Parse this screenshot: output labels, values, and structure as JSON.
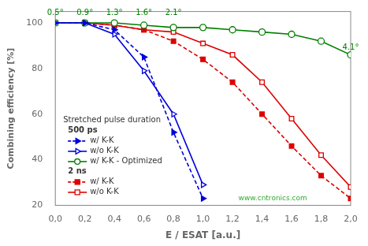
{
  "chart_data": {
    "type": "line",
    "xlabel": "E / ESAT [a.u.]",
    "ylabel": "Combining efficiency [%]",
    "xlim": [
      0,
      2.0
    ],
    "ylim": [
      20,
      105
    ],
    "xticks": [
      {
        "value": 0.0,
        "label": "0,0"
      },
      {
        "value": 0.2,
        "label": "0,2"
      },
      {
        "value": 0.4,
        "label": "0,4"
      },
      {
        "value": 0.6,
        "label": "0,6"
      },
      {
        "value": 0.8,
        "label": "0,8"
      },
      {
        "value": 1.0,
        "label": "1,0"
      },
      {
        "value": 1.2,
        "label": "1,2"
      },
      {
        "value": 1.4,
        "label": "1,4"
      },
      {
        "value": 1.6,
        "label": "1,6"
      },
      {
        "value": 1.8,
        "label": "1,8"
      },
      {
        "value": 2.0,
        "label": "2,0"
      }
    ],
    "yticks": [
      20,
      40,
      60,
      80,
      100
    ],
    "grid": false,
    "legend": "lower left",
    "legend_title": "Stretched pulse duration",
    "series": [
      {
        "name": "w/ K-K",
        "group": "500 ps",
        "color": "#0000dd",
        "marker": "filled_triangle_right",
        "line_style": "dashed",
        "x": [
          0.0,
          0.2,
          0.4,
          0.6,
          0.8,
          1.0
        ],
        "values": [
          100,
          100,
          97,
          85,
          52,
          23
        ]
      },
      {
        "name": "w/o K-K",
        "group": "500 ps",
        "color": "#0000dd",
        "marker": "open_triangle_right",
        "line_style": "solid",
        "x": [
          0.0,
          0.2,
          0.4,
          0.6,
          0.8,
          1.0
        ],
        "values": [
          100,
          100,
          95,
          79,
          60,
          29
        ]
      },
      {
        "name": "w/ K-K - Optimized",
        "group": "500 ps",
        "color": "#008000",
        "marker": "open_circle",
        "line_style": "solid",
        "x": [
          0.0,
          0.2,
          0.4,
          0.6,
          0.8,
          1.0,
          1.2,
          1.4,
          1.6,
          1.8,
          2.0
        ],
        "values": [
          100,
          100,
          100,
          99,
          98,
          98,
          97,
          96,
          95,
          92,
          86
        ]
      },
      {
        "name": "w/ K-K",
        "group": "2 ns",
        "color": "#dd0000",
        "marker": "filled_square",
        "line_style": "dashed",
        "x": [
          0.0,
          0.2,
          0.4,
          0.6,
          0.8,
          1.0,
          1.2,
          1.4,
          1.6,
          1.8,
          2.0
        ],
        "values": [
          100,
          100,
          99,
          97,
          92,
          84,
          74,
          60,
          46,
          33,
          23
        ]
      },
      {
        "name": "w/o K-K",
        "group": "2 ns",
        "color": "#dd0000",
        "marker": "open_square",
        "line_style": "solid",
        "x": [
          0.0,
          0.2,
          0.4,
          0.6,
          0.8,
          1.0,
          1.2,
          1.4,
          1.6,
          1.8,
          2.0
        ],
        "values": [
          100,
          100,
          99,
          97,
          96,
          91,
          86,
          74,
          58,
          42,
          28
        ]
      }
    ],
    "annotations": [
      {
        "x": 0.0,
        "y": 102.5,
        "text": "0.5°",
        "color": "#008000"
      },
      {
        "x": 0.2,
        "y": 102.5,
        "text": "0.9°",
        "color": "#008000"
      },
      {
        "x": 0.4,
        "y": 102.5,
        "text": "1.3°",
        "color": "#008000"
      },
      {
        "x": 0.6,
        "y": 102.5,
        "text": "1.6°",
        "color": "#008000"
      },
      {
        "x": 0.8,
        "y": 102.5,
        "text": "2.1°",
        "color": "#008000"
      },
      {
        "x": 2.0,
        "y": 87.5,
        "text": "4.1°",
        "color": "#008000"
      }
    ],
    "watermark": {
      "text": "www.cntronics.com",
      "color": "#33aa33"
    }
  }
}
